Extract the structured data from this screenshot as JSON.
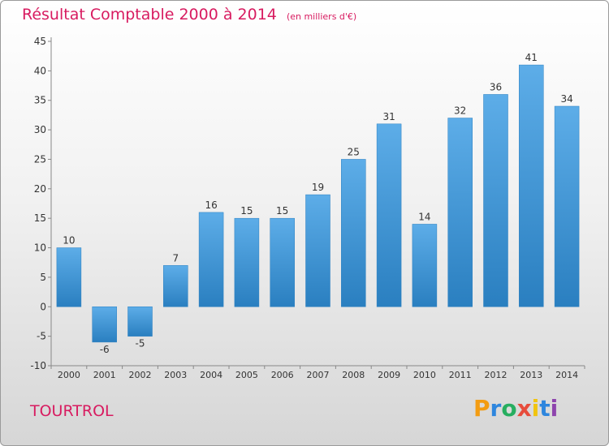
{
  "chart_data": {
    "type": "bar",
    "title": "Résultat Comptable 2000 à 2014",
    "subtitle": "(en milliers d'€)",
    "categories": [
      "2000",
      "2001",
      "2002",
      "2003",
      "2004",
      "2005",
      "2006",
      "2007",
      "2008",
      "2009",
      "2010",
      "2011",
      "2012",
      "2013",
      "2014"
    ],
    "values": [
      10,
      -6,
      -5,
      7,
      16,
      15,
      15,
      19,
      25,
      31,
      14,
      32,
      36,
      41,
      34
    ],
    "ylim": [
      -10,
      45
    ],
    "yticks": [
      -10,
      -5,
      0,
      5,
      10,
      15,
      20,
      25,
      30,
      35,
      40,
      45
    ],
    "grid": false,
    "bar_color": "#3d92d4"
  },
  "footer": {
    "commune": "TOURTROL",
    "logo_letters": [
      {
        "ch": "P",
        "color": "#f39c12"
      },
      {
        "ch": "r",
        "color": "#2e86de"
      },
      {
        "ch": "o",
        "color": "#27ae60"
      },
      {
        "ch": "x",
        "color": "#e74c3c"
      },
      {
        "ch": "i",
        "color": "#f1c40f"
      },
      {
        "ch": "t",
        "color": "#2e86de"
      },
      {
        "ch": "i",
        "color": "#8e44ad"
      }
    ]
  },
  "colors": {
    "title": "#d81b60",
    "axis": "#888888"
  }
}
